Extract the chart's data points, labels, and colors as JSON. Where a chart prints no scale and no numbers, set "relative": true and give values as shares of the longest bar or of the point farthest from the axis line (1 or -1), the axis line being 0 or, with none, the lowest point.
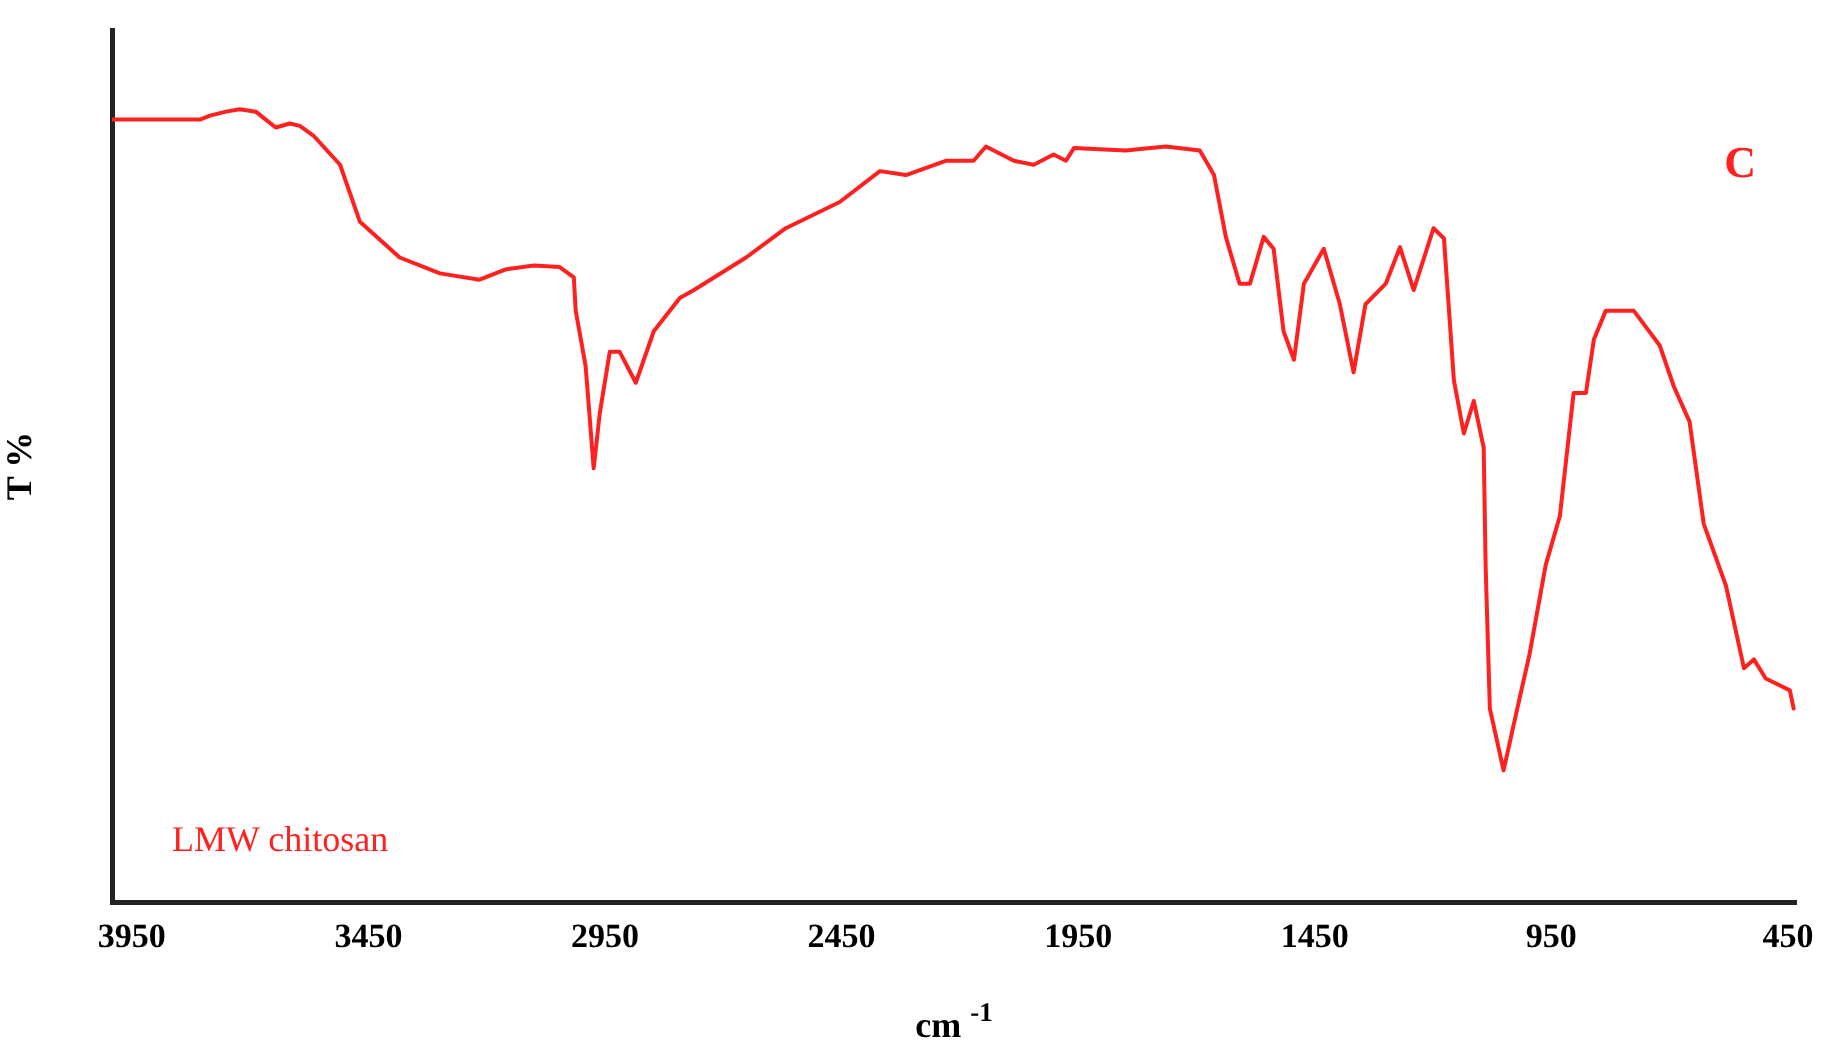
{
  "chart_data": {
    "type": "line",
    "title": "C",
    "xlabel": "cm $^{-1}$",
    "ylabel": "T %",
    "relative": true,
    "xlim": [
      3992,
      433
    ],
    "xticks": [
      3950,
      3450,
      2950,
      2450,
      1950,
      1450,
      950,
      450
    ],
    "grid": false,
    "legend": false,
    "marker": "none",
    "line_style": "solid",
    "annotations": [
      "LMW chitosan"
    ],
    "series": [
      {
        "color": "#ff2020",
        "x": [
          3992,
          3806,
          3785,
          3751,
          3722,
          3688,
          3667,
          3646,
          3616,
          3595,
          3565,
          3510,
          3468,
          3384,
          3299,
          3215,
          3160,
          3100,
          3046,
          3016,
          3012,
          2991,
          2974,
          2961,
          2940,
          2919,
          2885,
          2847,
          2792,
          2762,
          2652,
          2568,
          2454,
          2369,
          2314,
          2230,
          2171,
          2145,
          2086,
          2044,
          2002,
          1976,
          1959,
          1850,
          1765,
          1693,
          1663,
          1638,
          1609,
          1587,
          1558,
          1537,
          1516,
          1494,
          1473,
          1431,
          1397,
          1368,
          1343,
          1300,
          1270,
          1241,
          1199,
          1177,
          1156,
          1135,
          1114,
          1093,
          1089,
          1080,
          1051,
          1025,
          996,
          962,
          932,
          903,
          877,
          860,
          835,
          776,
          721,
          691,
          658,
          628,
          581,
          543,
          522,
          497,
          446,
          438
        ],
        "values": [
          0.987,
          0.987,
          0.992,
          0.997,
          1.0,
          0.997,
          0.987,
          0.977,
          0.982,
          0.979,
          0.966,
          0.93,
          0.858,
          0.813,
          0.793,
          0.785,
          0.798,
          0.803,
          0.801,
          0.788,
          0.746,
          0.676,
          0.547,
          0.617,
          0.694,
          0.694,
          0.655,
          0.72,
          0.762,
          0.772,
          0.813,
          0.85,
          0.883,
          0.922,
          0.917,
          0.935,
          0.935,
          0.953,
          0.935,
          0.93,
          0.943,
          0.935,
          0.951,
          0.948,
          0.953,
          0.948,
          0.917,
          0.839,
          0.78,
          0.78,
          0.839,
          0.824,
          0.72,
          0.684,
          0.78,
          0.824,
          0.754,
          0.668,
          0.754,
          0.78,
          0.826,
          0.772,
          0.85,
          0.837,
          0.658,
          0.591,
          0.632,
          0.573,
          0.425,
          0.244,
          0.166,
          0.236,
          0.313,
          0.425,
          0.487,
          0.642,
          0.642,
          0.71,
          0.746,
          0.746,
          0.702,
          0.65,
          0.606,
          0.477,
          0.399,
          0.295,
          0.306,
          0.282,
          0.267,
          0.244
        ]
      }
    ]
  }
}
